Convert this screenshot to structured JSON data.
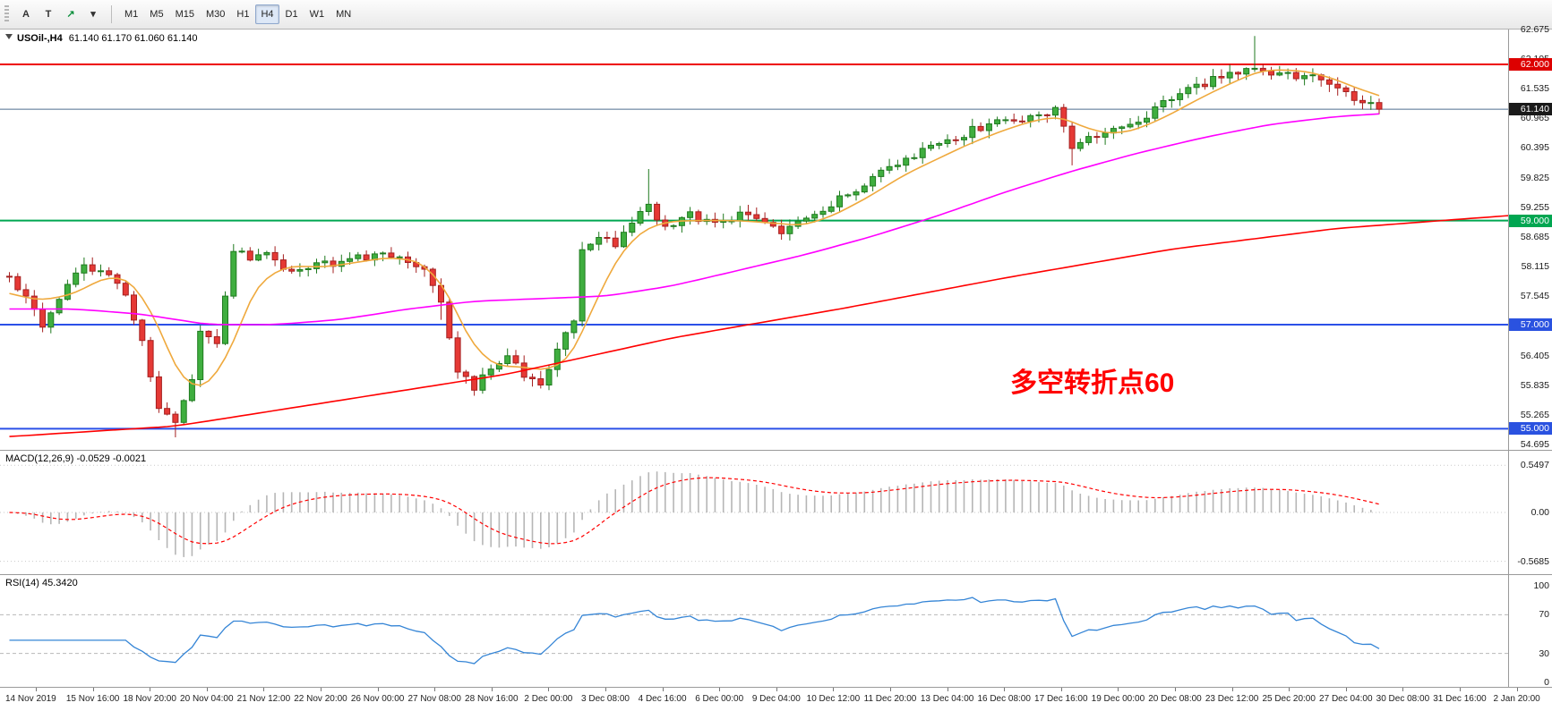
{
  "toolbar": {
    "tools": [
      {
        "name": "crosshair-tool-button",
        "glyph": "A",
        "color": "#333333"
      },
      {
        "name": "text-tool-button",
        "glyph": "T",
        "color": "#333333"
      },
      {
        "name": "indicators-button",
        "glyph": "↗",
        "color": "#0a8f3c"
      },
      {
        "name": "dropdown-arrow-button",
        "glyph": "▾",
        "color": "#333333"
      }
    ],
    "timeframes": [
      "M1",
      "M5",
      "M15",
      "M30",
      "H1",
      "H4",
      "D1",
      "W1",
      "MN"
    ],
    "active_timeframe": "H4"
  },
  "chart_header": {
    "symbol_period": "USOil-,H4",
    "ohlc": "61.140 61.170 61.060 61.140"
  },
  "annotation": {
    "text": "多空转折点60",
    "color": "#ff0000"
  },
  "chart_data": {
    "type": "candlestick",
    "symbol": "USOil-",
    "timeframe": "H4",
    "ohlc_current": {
      "open": "61.140",
      "high": "61.170",
      "low": "61.060",
      "close": "61.140"
    },
    "price_axis_labels": [
      "62.675",
      "62.105",
      "61.535",
      "60.965",
      "60.395",
      "59.825",
      "59.255",
      "58.685",
      "58.115",
      "57.545",
      "56.405",
      "55.835",
      "55.265",
      "54.695"
    ],
    "price_badges": [
      {
        "price": 62.0,
        "label": "62.000",
        "bg": "#dd0000"
      },
      {
        "price": 61.14,
        "label": "61.140",
        "bg": "#1a1a1a"
      },
      {
        "price": 59.0,
        "label": "59.000",
        "bg": "#00a651"
      },
      {
        "price": 57.0,
        "label": "57.000",
        "bg": "#2a52e0"
      },
      {
        "price": 55.0,
        "label": "55.000",
        "bg": "#2a52e0"
      }
    ],
    "horizontal_levels": [
      {
        "price": 62.0,
        "color": "#ee0000",
        "width": 2
      },
      {
        "price": 61.14,
        "color": "#4f6d8f",
        "width": 1
      },
      {
        "price": 59.0,
        "color": "#00a651",
        "width": 2
      },
      {
        "price": 57.0,
        "color": "#2b50e8",
        "width": 2
      },
      {
        "price": 55.0,
        "color": "#2b50e8",
        "width": 2
      }
    ],
    "candles": {
      "up_color": "#3fae3f",
      "up_border": "#1f7a1f",
      "down_color": "#e53935",
      "down_border": "#a52020",
      "last_close": 61.14,
      "anchors": [
        [
          0,
          57.85
        ],
        [
          2,
          57.55
        ],
        [
          4,
          56.95
        ],
        [
          6,
          57.55
        ],
        [
          9,
          58.1
        ],
        [
          12,
          57.9
        ],
        [
          14,
          57.55
        ],
        [
          16,
          56.7
        ],
        [
          18,
          55.35
        ],
        [
          20,
          55.1
        ],
        [
          22,
          55.9
        ],
        [
          23,
          56.85
        ],
        [
          25,
          56.7
        ],
        [
          27,
          58.45
        ],
        [
          29,
          58.3
        ],
        [
          31,
          58.45
        ],
        [
          33,
          58.0
        ],
        [
          36,
          58.15
        ],
        [
          40,
          58.2
        ],
        [
          44,
          58.35
        ],
        [
          47,
          58.25
        ],
        [
          50,
          58.1
        ],
        [
          52,
          57.4
        ],
        [
          54,
          56.15
        ],
        [
          56,
          55.75
        ],
        [
          58,
          56.2
        ],
        [
          60,
          56.45
        ],
        [
          62,
          56.0
        ],
        [
          64,
          55.85
        ],
        [
          66,
          56.55
        ],
        [
          68,
          57.0
        ],
        [
          69,
          58.4
        ],
        [
          71,
          58.75
        ],
        [
          73,
          58.55
        ],
        [
          75,
          59.0
        ],
        [
          77,
          59.25
        ],
        [
          79,
          58.85
        ],
        [
          82,
          59.1
        ],
        [
          85,
          58.9
        ],
        [
          88,
          59.15
        ],
        [
          91,
          58.95
        ],
        [
          93,
          58.7
        ],
        [
          96,
          59.05
        ],
        [
          99,
          59.3
        ],
        [
          102,
          59.6
        ],
        [
          105,
          60.0
        ],
        [
          108,
          60.15
        ],
        [
          111,
          60.4
        ],
        [
          114,
          60.6
        ],
        [
          117,
          60.8
        ],
        [
          120,
          60.9
        ],
        [
          123,
          61.0
        ],
        [
          126,
          61.15
        ],
        [
          128,
          60.45
        ],
        [
          130,
          60.6
        ],
        [
          133,
          60.7
        ],
        [
          136,
          60.85
        ],
        [
          139,
          61.25
        ],
        [
          142,
          61.5
        ],
        [
          145,
          61.7
        ],
        [
          148,
          61.85
        ],
        [
          150,
          62.0
        ],
        [
          152,
          61.85
        ],
        [
          155,
          61.8
        ],
        [
          158,
          61.7
        ],
        [
          161,
          61.45
        ],
        [
          163,
          61.25
        ],
        [
          165,
          61.14
        ]
      ],
      "spikes": [
        {
          "bar": 77,
          "high": 0.65
        },
        {
          "bar": 150,
          "high": 0.6
        },
        {
          "bar": 20,
          "low": 0.25
        },
        {
          "bar": 52,
          "low": 0.2
        },
        {
          "bar": 128,
          "low": 0.2
        }
      ]
    },
    "moving_averages": [
      {
        "name": "ma-fast-orange",
        "color": "#efa93d",
        "anchors": [
          [
            0,
            57.6
          ],
          [
            4,
            57.45
          ],
          [
            8,
            57.6
          ],
          [
            12,
            57.95
          ],
          [
            15,
            57.85
          ],
          [
            18,
            57.0
          ],
          [
            21,
            55.8
          ],
          [
            24,
            55.75
          ],
          [
            27,
            56.6
          ],
          [
            30,
            57.9
          ],
          [
            34,
            58.15
          ],
          [
            38,
            58.1
          ],
          [
            42,
            58.2
          ],
          [
            46,
            58.3
          ],
          [
            50,
            58.2
          ],
          [
            53,
            57.6
          ],
          [
            56,
            56.5
          ],
          [
            59,
            56.15
          ],
          [
            62,
            56.2
          ],
          [
            65,
            56.1
          ],
          [
            68,
            56.4
          ],
          [
            71,
            57.6
          ],
          [
            74,
            58.5
          ],
          [
            77,
            58.9
          ],
          [
            80,
            59.0
          ],
          [
            84,
            59.0
          ],
          [
            88,
            59.0
          ],
          [
            92,
            58.95
          ],
          [
            96,
            58.9
          ],
          [
            100,
            59.15
          ],
          [
            104,
            59.5
          ],
          [
            108,
            59.9
          ],
          [
            112,
            60.2
          ],
          [
            116,
            60.5
          ],
          [
            120,
            60.75
          ],
          [
            124,
            60.95
          ],
          [
            127,
            61.0
          ],
          [
            130,
            60.75
          ],
          [
            133,
            60.65
          ],
          [
            136,
            60.75
          ],
          [
            140,
            61.05
          ],
          [
            144,
            61.4
          ],
          [
            148,
            61.7
          ],
          [
            151,
            61.9
          ],
          [
            154,
            61.9
          ],
          [
            157,
            61.85
          ],
          [
            160,
            61.7
          ],
          [
            163,
            61.5
          ],
          [
            165,
            61.4
          ]
        ]
      },
      {
        "name": "ma-mid-magenta",
        "color": "#ff00ff",
        "anchors": [
          [
            0,
            57.3
          ],
          [
            8,
            57.3
          ],
          [
            16,
            57.2
          ],
          [
            24,
            57.0
          ],
          [
            32,
            57.0
          ],
          [
            40,
            57.1
          ],
          [
            48,
            57.3
          ],
          [
            56,
            57.45
          ],
          [
            64,
            57.5
          ],
          [
            72,
            57.55
          ],
          [
            80,
            57.75
          ],
          [
            88,
            58.05
          ],
          [
            96,
            58.35
          ],
          [
            104,
            58.7
          ],
          [
            112,
            59.1
          ],
          [
            120,
            59.55
          ],
          [
            128,
            59.95
          ],
          [
            136,
            60.3
          ],
          [
            144,
            60.6
          ],
          [
            152,
            60.85
          ],
          [
            160,
            61.0
          ],
          [
            165,
            61.05
          ]
        ]
      },
      {
        "name": "ma-slow-red",
        "color": "#ff0000",
        "anchors": [
          [
            0,
            54.85
          ],
          [
            20,
            55.05
          ],
          [
            40,
            55.55
          ],
          [
            60,
            56.05
          ],
          [
            80,
            56.75
          ],
          [
            100,
            57.3
          ],
          [
            120,
            57.9
          ],
          [
            140,
            58.45
          ],
          [
            160,
            58.85
          ],
          [
            181,
            59.1
          ]
        ]
      }
    ],
    "macd": {
      "label": "MACD(12,26,9) -0.0529 -0.0021",
      "axis_labels": [
        "0.5497",
        "0.00",
        "-0.5685"
      ],
      "histogram_color": "#b6b6b6",
      "signal_color": "#ff0000"
    },
    "rsi": {
      "label": "RSI(14) 45.3420",
      "axis_labels": [
        "100",
        "70",
        "30",
        "0"
      ],
      "levels": [
        70,
        30
      ],
      "line_color": "#3585d6"
    },
    "time_labels": [
      "14 Nov 2019",
      "15 Nov 16:00",
      "18 Nov 20:00",
      "20 Nov 04:00",
      "21 Nov 12:00",
      "22 Nov 20:00",
      "26 Nov 00:00",
      "27 Nov 08:00",
      "28 Nov 16:00",
      "2 Dec 00:00",
      "3 Dec 08:00",
      "4 Dec 16:00",
      "6 Dec 00:00",
      "9 Dec 04:00",
      "10 Dec 12:00",
      "11 Dec 20:00",
      "13 Dec 04:00",
      "16 Dec 08:00",
      "17 Dec 16:00",
      "19 Dec 00:00",
      "20 Dec 08:00",
      "23 Dec 12:00",
      "25 Dec 20:00",
      "27 Dec 04:00",
      "30 Dec 08:00",
      "31 Dec 16:00",
      "2 Jan 20:00"
    ]
  }
}
